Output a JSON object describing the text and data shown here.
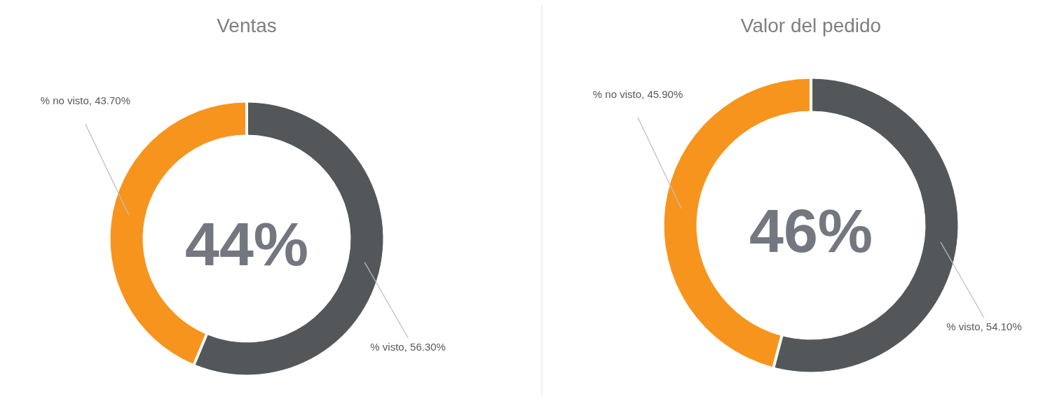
{
  "chart_data": [
    {
      "type": "donut",
      "title": "Ventas",
      "categories": [
        "% visto",
        "% no visto"
      ],
      "values": [
        56.3,
        43.7
      ],
      "colors": [
        "#54575a",
        "#f7941d"
      ],
      "value_labels": [
        ", 56.30%",
        ", 43.70%"
      ],
      "annotations": [
        "44%"
      ],
      "legend": false
    },
    {
      "type": "donut",
      "title": "Valor del pedido",
      "categories": [
        "% visto",
        "% no visto"
      ],
      "values": [
        54.1,
        45.9
      ],
      "colors": [
        "#54575a",
        "#f7941d"
      ],
      "value_labels": [
        ", 54.10%",
        ", 45.90%"
      ],
      "annotations": [
        "46%"
      ],
      "legend": false
    }
  ]
}
